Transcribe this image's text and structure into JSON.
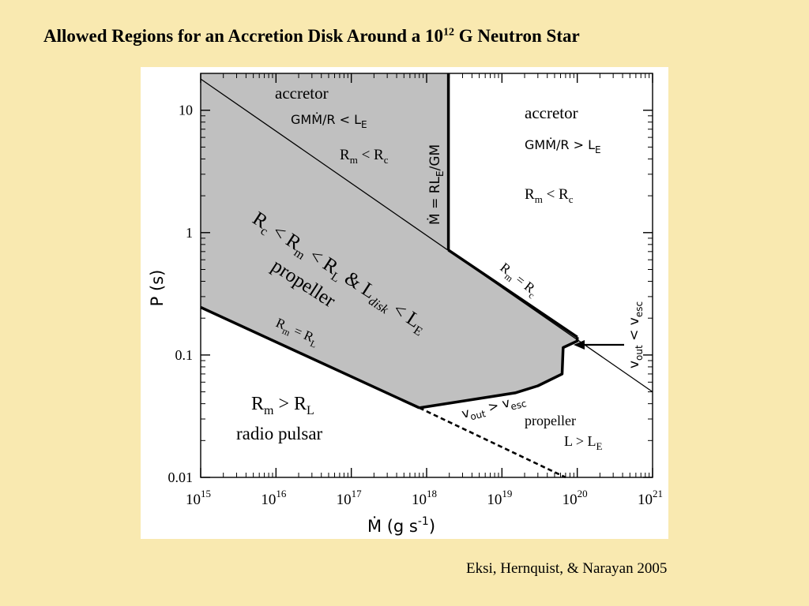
{
  "slide": {
    "title_main": "Allowed Regions for an Accretion Disk Around a 10",
    "title_exp": "12",
    "title_tail": " G Neutron Star",
    "credit": "Eksi, Hernquist, & Narayan 2005"
  },
  "chart_data": {
    "type": "line",
    "x_scale": "log",
    "y_scale": "log",
    "xlim": [
      1000000000000000.0,
      1e+21
    ],
    "ylim": [
      0.01,
      20
    ],
    "xlabel": {
      "base": "Ṁ (g s",
      "exp": "-1",
      "tail": ")"
    },
    "ylabel": "P (s)",
    "x_ticks": [
      {
        "value": 1000000000000000.0,
        "base": "10",
        "exp": "15"
      },
      {
        "value": 1e+16,
        "base": "10",
        "exp": "16"
      },
      {
        "value": 1e+17,
        "base": "10",
        "exp": "17"
      },
      {
        "value": 1e+18,
        "base": "10",
        "exp": "18"
      },
      {
        "value": 1e+19,
        "base": "10",
        "exp": "19"
      },
      {
        "value": 1e+20,
        "base": "10",
        "exp": "20"
      },
      {
        "value": 1e+21,
        "base": "10",
        "exp": "21"
      }
    ],
    "y_ticks": [
      {
        "value": 10,
        "label": "10"
      },
      {
        "value": 1,
        "label": "1"
      },
      {
        "value": 0.1,
        "label": "0.1"
      },
      {
        "value": 0.01,
        "label": "0.01"
      }
    ],
    "grid": false,
    "propeller_region": {
      "fill": "#c0c0c0",
      "boundary": [
        [
          1000000000000000.0,
          20
        ],
        [
          1.95e+18,
          20
        ],
        [
          1.95e+18,
          0.72
        ],
        [
          1e+20,
          0.14
        ],
        [
          1e+20,
          0.13
        ],
        [
          6.5e+19,
          0.115
        ],
        [
          6.3e+19,
          0.07
        ],
        [
          3e+19,
          0.056
        ],
        [
          1.5e+19,
          0.049
        ],
        [
          8e+17,
          0.037
        ],
        [
          1000000000000000.0,
          0.245
        ]
      ]
    },
    "lines": [
      {
        "name": "Rm = Rc",
        "style": "thin",
        "points": [
          [
            1000000000000000.0,
            18
          ],
          [
            1e+21,
            0.05
          ]
        ]
      },
      {
        "name": "Ṁ = RL_E/GM",
        "style": "thick",
        "points": [
          [
            1.95e+18,
            20
          ],
          [
            1.95e+18,
            0.72
          ]
        ]
      },
      {
        "name": "Rm = Rc",
        "style": "thick",
        "points": [
          [
            1.95e+18,
            0.72
          ],
          [
            1e+20,
            0.14
          ]
        ]
      },
      {
        "name": "vout > vesc",
        "style": "thick",
        "points": [
          [
            1e+20,
            0.14
          ],
          [
            1e+20,
            0.13
          ],
          [
            6.5e+19,
            0.115
          ],
          [
            6.3e+19,
            0.07
          ],
          [
            3e+19,
            0.056
          ],
          [
            1.5e+19,
            0.049
          ],
          [
            8e+17,
            0.037
          ]
        ]
      },
      {
        "name": "Rm = RL",
        "style": "thick",
        "points": [
          [
            1000000000000000.0,
            0.245
          ],
          [
            8e+17,
            0.037
          ]
        ]
      },
      {
        "name": "Rm = RL",
        "style": "dashed",
        "points": [
          [
            8e+17,
            0.037
          ],
          [
            7e+19,
            0.01
          ]
        ]
      }
    ],
    "annotations": {
      "acc_left_title": "accretor",
      "acc_left_cond": "GMṀ/R < L",
      "acc_left_cond_sub": "E",
      "acc_left_rm_a": "R",
      "acc_left_rm_sub": "m",
      "acc_left_rm_b": " < R",
      "acc_left_rm_sub2": "c",
      "mdot_line_a": "Ṁ = RL",
      "mdot_line_sub": "E",
      "mdot_line_b": "/GM",
      "acc_right_title": "accretor",
      "acc_right_cond": "GMṀ/R > L",
      "acc_right_cond_sub": "E",
      "acc_right_rm_a": "R",
      "acc_right_rm_sub": "m",
      "acc_right_rm_b": " < R",
      "acc_right_rm_sub2": "c",
      "prop_big_1": "R",
      "prop_big_1_sub": "c",
      "prop_big_2": " < R",
      "prop_big_2_sub": "m",
      "prop_big_3": " < R",
      "prop_big_3_sub": "L",
      "prop_big_4": " & L",
      "prop_big_4_sub": "disk",
      "prop_big_5": " < L",
      "prop_big_5_sub": "E",
      "prop_big_word": "propeller",
      "rm_rc_a": "R",
      "rm_rc_sub": "m",
      "rm_rc_b": " = R",
      "rm_rc_sub2": "c",
      "rm_rl_a": "R",
      "rm_rl_sub": "m",
      "rm_rl_b": " = R",
      "rm_rl_sub2": "L",
      "vout_vesc_a": "v",
      "vout_vesc_sub": "out",
      "vout_vesc_b": " > v",
      "vout_vesc_sub2": "esc",
      "vout_lt_a": "v",
      "vout_lt_sub": "out",
      "vout_lt_b": " < v",
      "vout_lt_sub2": "esc",
      "pulsar_rm_a": "R",
      "pulsar_rm_sub": "m",
      "pulsar_rm_b": " > R",
      "pulsar_rm_sub2": "L",
      "pulsar_word": "radio pulsar",
      "prop_right_word": "propeller",
      "prop_right_cond": "L > L",
      "prop_right_cond_sub": "E"
    }
  }
}
